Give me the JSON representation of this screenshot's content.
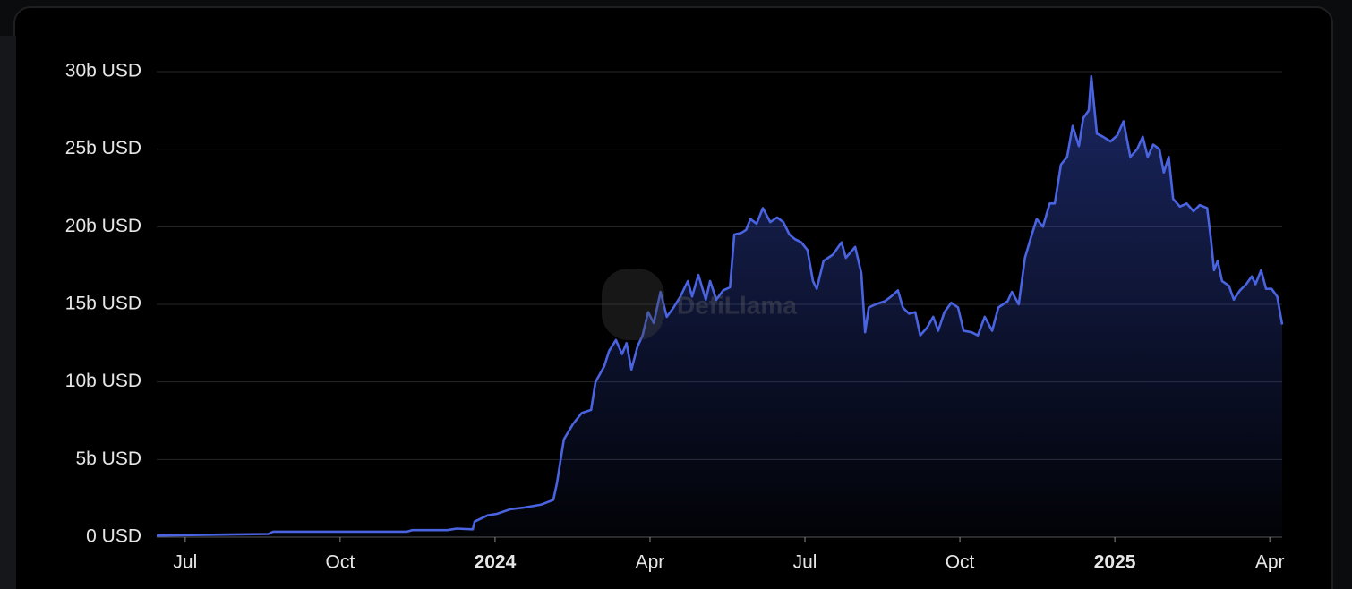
{
  "chart_data": {
    "type": "area",
    "watermark": "DefiLlama",
    "color": "#4a63e0",
    "grid": true,
    "xlim": [
      2023.454,
      2025.27
    ],
    "xticks": [
      {
        "value": 2023.5,
        "label": "Jul"
      },
      {
        "value": 2023.75,
        "label": "Oct"
      },
      2024,
      {
        "value": 2024.25,
        "label": "Apr"
      },
      {
        "value": 2024.5,
        "label": "Jul"
      },
      {
        "value": 2024.75,
        "label": "Oct"
      },
      2025,
      {
        "value": 2025.25,
        "label": "Apr"
      }
    ],
    "ylim": [
      0,
      30
    ],
    "yticks": [
      {
        "value": 0,
        "label": "0 USD"
      },
      {
        "value": 5,
        "label": "5b USD"
      },
      {
        "value": 10,
        "label": "10b USD"
      },
      {
        "value": 15,
        "label": "15b USD"
      },
      {
        "value": 20,
        "label": "20b USD"
      },
      {
        "value": 25,
        "label": "25b USD"
      },
      {
        "value": 30,
        "label": "30b USD"
      }
    ],
    "x": [
      2023.454,
      2023.533,
      2023.634,
      2023.642,
      2023.858,
      2023.866,
      2023.923,
      2023.938,
      2023.964,
      2023.967,
      2023.988,
      2024.003,
      2024.025,
      2024.046,
      2024.075,
      2024.094,
      2024.1,
      2024.111,
      2024.126,
      2024.14,
      2024.155,
      2024.162,
      2024.176,
      2024.184,
      2024.195,
      2024.205,
      2024.212,
      2024.22,
      2024.23,
      2024.238,
      2024.247,
      2024.256,
      2024.267,
      2024.277,
      2024.288,
      2024.299,
      2024.311,
      2024.318,
      2024.328,
      2024.34,
      2024.347,
      2024.357,
      2024.368,
      2024.379,
      2024.386,
      2024.397,
      2024.405,
      2024.412,
      2024.422,
      2024.432,
      2024.444,
      2024.455,
      2024.465,
      2024.475,
      2024.484,
      2024.494,
      2024.504,
      2024.513,
      2024.519,
      2024.53,
      2024.545,
      2024.559,
      2024.566,
      2024.581,
      2024.591,
      2024.597,
      2024.603,
      2024.614,
      2024.629,
      2024.639,
      2024.65,
      2024.658,
      2024.668,
      2024.678,
      2024.686,
      2024.697,
      2024.707,
      2024.715,
      2024.725,
      2024.736,
      2024.747,
      2024.756,
      2024.769,
      2024.779,
      2024.79,
      2024.802,
      2024.812,
      2024.827,
      2024.834,
      2024.845,
      2024.855,
      2024.866,
      2024.874,
      2024.884,
      2024.895,
      2024.903,
      2024.913,
      2024.923,
      2024.932,
      2024.942,
      2024.949,
      2024.958,
      2024.962,
      2024.971,
      2024.981,
      2024.993,
      2025.004,
      2025.014,
      2025.025,
      2025.036,
      2025.045,
      2025.053,
      2025.062,
      2025.072,
      2025.079,
      2025.087,
      2025.094,
      2025.105,
      2025.116,
      2025.127,
      2025.137,
      2025.149,
      2025.155,
      2025.16,
      2025.166,
      2025.173,
      2025.184,
      2025.192,
      2025.202,
      2025.212,
      2025.221,
      2025.227,
      2025.236,
      2025.244,
      2025.253,
      2025.262,
      2025.27
    ],
    "values": [
      0.1,
      0.15,
      0.2,
      0.35,
      0.35,
      0.45,
      0.45,
      0.55,
      0.5,
      1.0,
      1.4,
      1.5,
      1.8,
      1.9,
      2.1,
      2.4,
      3.5,
      6.3,
      7.3,
      8.0,
      8.2,
      10.0,
      11.0,
      12.0,
      12.7,
      11.8,
      12.5,
      10.8,
      12.3,
      13.0,
      14.5,
      13.8,
      15.8,
      14.2,
      14.8,
      15.5,
      16.5,
      15.5,
      16.9,
      15.3,
      16.5,
      15.3,
      15.9,
      16.1,
      19.5,
      19.6,
      19.8,
      20.5,
      20.2,
      21.2,
      20.3,
      20.6,
      20.3,
      19.5,
      19.2,
      19.0,
      18.5,
      16.5,
      16.0,
      17.8,
      18.2,
      19.0,
      18.0,
      18.7,
      17.0,
      13.2,
      14.8,
      15.0,
      15.2,
      15.5,
      15.9,
      14.8,
      14.4,
      14.5,
      13.0,
      13.5,
      14.2,
      13.3,
      14.5,
      15.1,
      14.8,
      13.3,
      13.2,
      13.0,
      14.2,
      13.3,
      14.8,
      15.2,
      15.8,
      15.0,
      18.0,
      19.5,
      20.5,
      20.0,
      21.5,
      21.5,
      24.0,
      24.5,
      26.5,
      25.2,
      27.0,
      27.5,
      29.7,
      26.0,
      25.8,
      25.5,
      25.9,
      26.8,
      24.5,
      25.0,
      25.8,
      24.5,
      25.3,
      25.0,
      23.5,
      24.5,
      21.8,
      21.3,
      21.5,
      21.0,
      21.4,
      21.2,
      19.2,
      17.2,
      17.8,
      16.5,
      16.2,
      15.3,
      15.9,
      16.3,
      16.8,
      16.3,
      17.2,
      16.0,
      16.0,
      15.5,
      13.7
    ]
  }
}
